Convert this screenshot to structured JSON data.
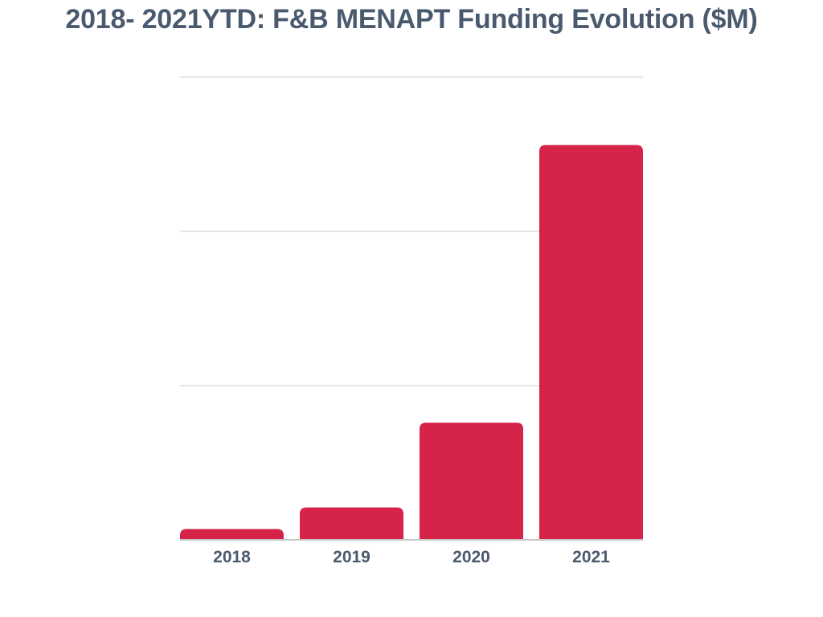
{
  "chart_data": {
    "type": "bar",
    "title": "2018- 2021YTD: F&B MENAPT Funding Evolution ($M)",
    "xlabel": "",
    "ylabel": "",
    "categories": [
      "2018",
      "2019",
      "2020",
      "2021"
    ],
    "values": [
      7,
      21,
      76,
      256
    ],
    "ylim": [
      0,
      300
    ],
    "grid": true,
    "legend": "none"
  },
  "colors": {
    "bar": "#d5234a",
    "title": "#4a5a6e",
    "tick_label": "#4a5a6e",
    "grid": "#e6e6e6",
    "axis": "#c8c8c8"
  }
}
